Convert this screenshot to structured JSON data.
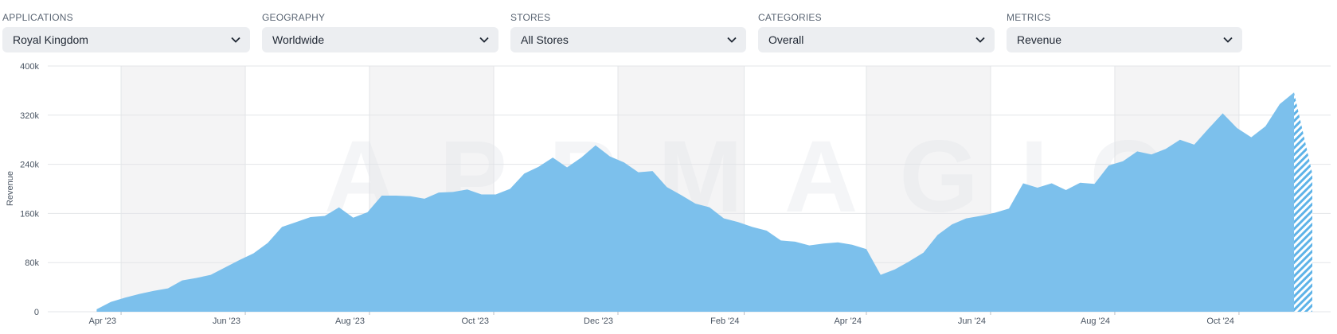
{
  "filters": [
    {
      "label": "APPLICATIONS",
      "value": "Royal Kingdom"
    },
    {
      "label": "GEOGRAPHY",
      "value": "Worldwide"
    },
    {
      "label": "STORES",
      "value": "All Stores"
    },
    {
      "label": "CATEGORIES",
      "value": "Overall"
    },
    {
      "label": "METRICS",
      "value": "Revenue"
    }
  ],
  "watermark": "APPMAGIC",
  "colors": {
    "area": "#7cc0ec",
    "hatch": "#5eb3e8",
    "band": "#f4f4f5",
    "grid": "#e3e5e8"
  },
  "chart_data": {
    "type": "area",
    "ylabel": "Revenue",
    "xlabel": "",
    "ylim": [
      0,
      400000
    ],
    "yticks": [
      {
        "value": 0,
        "label": "0"
      },
      {
        "value": 80000,
        "label": "80k"
      },
      {
        "value": 160000,
        "label": "160k"
      },
      {
        "value": 240000,
        "label": "240k"
      },
      {
        "value": 320000,
        "label": "320k"
      },
      {
        "value": 400000,
        "label": "400k"
      }
    ],
    "xlim": [
      "2023-02-24",
      "2024-11-15"
    ],
    "xticks": [
      {
        "date": "2023-04-01",
        "label": "Apr '23"
      },
      {
        "date": "2023-06-01",
        "label": "Jun '23"
      },
      {
        "date": "2023-08-01",
        "label": "Aug '23"
      },
      {
        "date": "2023-10-01",
        "label": "Oct '23"
      },
      {
        "date": "2023-12-01",
        "label": "Dec '23"
      },
      {
        "date": "2024-02-01",
        "label": "Feb '24"
      },
      {
        "date": "2024-04-01",
        "label": "Apr '24"
      },
      {
        "date": "2024-06-01",
        "label": "Jun '24"
      },
      {
        "date": "2024-08-01",
        "label": "Aug '24"
      },
      {
        "date": "2024-10-01",
        "label": "Oct '24"
      }
    ],
    "shaded_months": [
      [
        "2023-04-01",
        "2023-06-01"
      ],
      [
        "2023-08-01",
        "2023-10-01"
      ],
      [
        "2023-12-01",
        "2024-02-01"
      ],
      [
        "2024-04-01",
        "2024-06-01"
      ],
      [
        "2024-08-01",
        "2024-10-01"
      ]
    ],
    "grid": true,
    "series": [
      {
        "points": [
          [
            "2023-03-20",
            4000
          ],
          [
            "2023-03-27",
            16000
          ],
          [
            "2023-04-03",
            23000
          ],
          [
            "2023-04-10",
            29000
          ],
          [
            "2023-04-17",
            34000
          ],
          [
            "2023-04-24",
            38000
          ],
          [
            "2023-05-01",
            51000
          ],
          [
            "2023-05-08",
            55000
          ],
          [
            "2023-05-15",
            60000
          ],
          [
            "2023-05-22",
            72000
          ],
          [
            "2023-05-29",
            84000
          ],
          [
            "2023-06-05",
            95000
          ],
          [
            "2023-06-12",
            112000
          ],
          [
            "2023-06-19",
            138000
          ],
          [
            "2023-06-26",
            146000
          ],
          [
            "2023-07-03",
            154000
          ],
          [
            "2023-07-10",
            156000
          ],
          [
            "2023-07-17",
            170000
          ],
          [
            "2023-07-24",
            153000
          ],
          [
            "2023-07-31",
            162000
          ],
          [
            "2023-08-07",
            189000
          ],
          [
            "2023-08-14",
            189000
          ],
          [
            "2023-08-21",
            188000
          ],
          [
            "2023-08-28",
            184000
          ],
          [
            "2023-09-04",
            194000
          ],
          [
            "2023-09-11",
            195000
          ],
          [
            "2023-09-18",
            199000
          ],
          [
            "2023-09-25",
            191000
          ],
          [
            "2023-10-02",
            191000
          ],
          [
            "2023-10-09",
            200000
          ],
          [
            "2023-10-16",
            225000
          ],
          [
            "2023-10-23",
            236000
          ],
          [
            "2023-10-30",
            251000
          ],
          [
            "2023-11-06",
            235000
          ],
          [
            "2023-11-13",
            251000
          ],
          [
            "2023-11-20",
            271000
          ],
          [
            "2023-11-27",
            253000
          ],
          [
            "2023-12-04",
            243000
          ],
          [
            "2023-12-11",
            227000
          ],
          [
            "2023-12-18",
            229000
          ],
          [
            "2023-12-25",
            203000
          ],
          [
            "2024-01-01",
            190000
          ],
          [
            "2024-01-08",
            176000
          ],
          [
            "2024-01-15",
            170000
          ],
          [
            "2024-01-22",
            152000
          ],
          [
            "2024-01-29",
            146000
          ],
          [
            "2024-02-05",
            138000
          ],
          [
            "2024-02-12",
            132000
          ],
          [
            "2024-02-19",
            116000
          ],
          [
            "2024-02-26",
            114000
          ],
          [
            "2024-03-04",
            108000
          ],
          [
            "2024-03-11",
            111000
          ],
          [
            "2024-03-18",
            113000
          ],
          [
            "2024-03-25",
            109000
          ],
          [
            "2024-04-01",
            102000
          ],
          [
            "2024-04-08",
            60000
          ],
          [
            "2024-04-15",
            69000
          ],
          [
            "2024-04-22",
            82000
          ],
          [
            "2024-04-29",
            96000
          ],
          [
            "2024-05-06",
            125000
          ],
          [
            "2024-05-13",
            142000
          ],
          [
            "2024-05-20",
            152000
          ],
          [
            "2024-05-27",
            156000
          ],
          [
            "2024-06-03",
            161000
          ],
          [
            "2024-06-10",
            168000
          ],
          [
            "2024-06-17",
            209000
          ],
          [
            "2024-06-24",
            202000
          ],
          [
            "2024-07-01",
            209000
          ],
          [
            "2024-07-08",
            198000
          ],
          [
            "2024-07-15",
            210000
          ],
          [
            "2024-07-22",
            208000
          ],
          [
            "2024-07-29",
            238000
          ],
          [
            "2024-08-05",
            245000
          ],
          [
            "2024-08-12",
            261000
          ],
          [
            "2024-08-19",
            256000
          ],
          [
            "2024-08-26",
            265000
          ],
          [
            "2024-09-02",
            280000
          ],
          [
            "2024-09-09",
            272000
          ],
          [
            "2024-09-16",
            298000
          ],
          [
            "2024-09-23",
            323000
          ],
          [
            "2024-09-30",
            299000
          ],
          [
            "2024-10-07",
            284000
          ],
          [
            "2024-10-14",
            302000
          ],
          [
            "2024-10-21",
            338000
          ],
          [
            "2024-10-28",
            357000
          ]
        ],
        "projection_end": [
          "2024-11-06",
          225000
        ]
      }
    ]
  }
}
